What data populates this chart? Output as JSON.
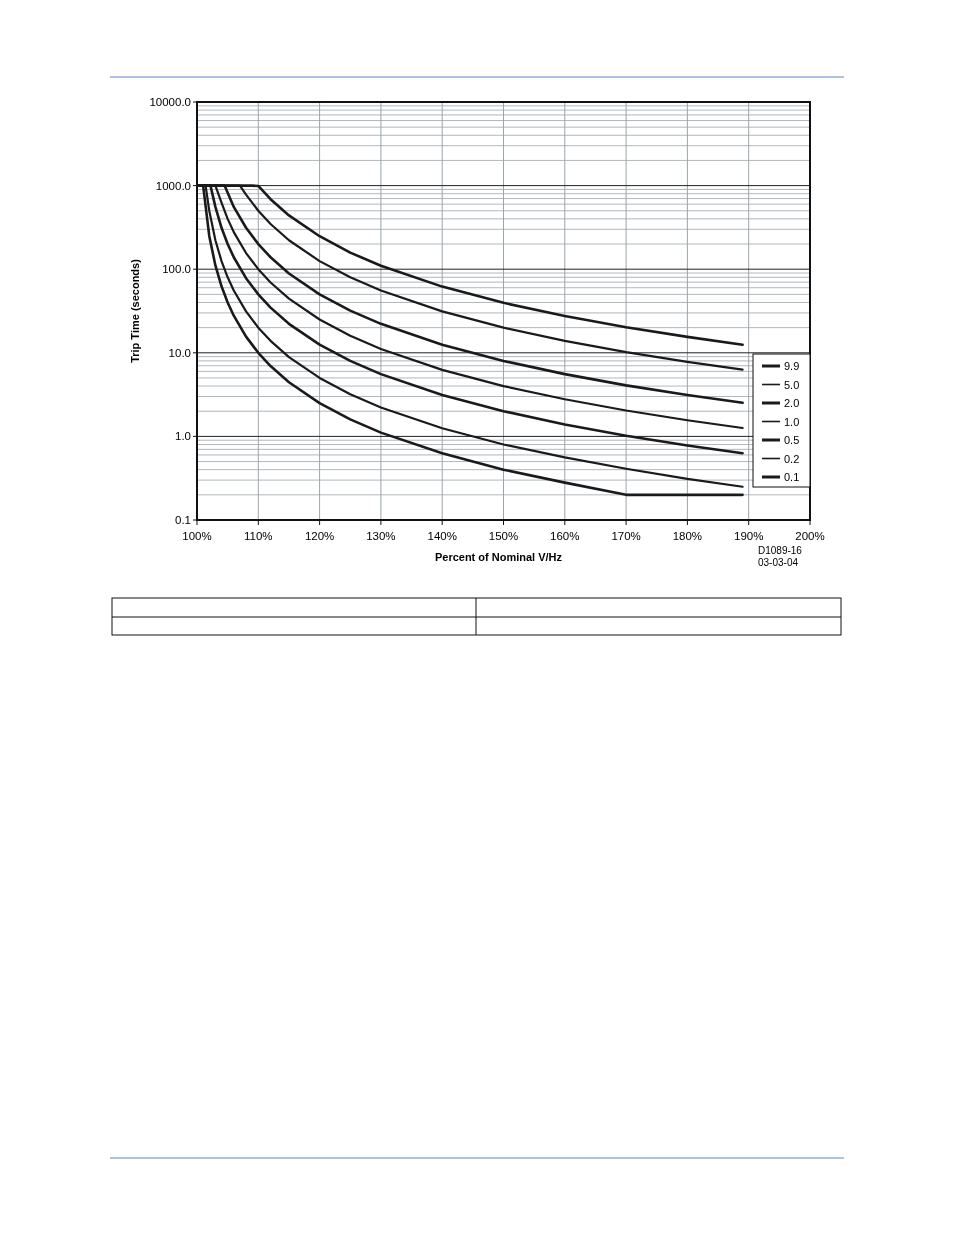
{
  "chart_data": {
    "type": "line",
    "xlabel": "Percent of Nominal V/Hz",
    "ylabel": "Trip Time (seconds)",
    "log": "y",
    "grid": true,
    "legend": "right",
    "marker": "none",
    "line_style": "solid",
    "xlim": [
      100,
      200
    ],
    "ylim": [
      0.1,
      10000
    ],
    "xticks": [
      {
        "value": 100,
        "label": "100%"
      },
      {
        "value": 110,
        "label": "110%"
      },
      {
        "value": 120,
        "label": "120%"
      },
      {
        "value": 130,
        "label": "130%"
      },
      {
        "value": 140,
        "label": "140%"
      },
      {
        "value": 150,
        "label": "150%"
      },
      {
        "value": 160,
        "label": "160%"
      },
      {
        "value": 170,
        "label": "170%"
      },
      {
        "value": 180,
        "label": "180%"
      },
      {
        "value": 190,
        "label": "190%"
      },
      {
        "value": 200,
        "label": "200%"
      }
    ],
    "yticks": [
      {
        "value": 0.1,
        "label": "0.1"
      },
      {
        "value": 1,
        "label": "1.0"
      },
      {
        "value": 10,
        "label": "10.0"
      },
      {
        "value": 100,
        "label": "100.0"
      },
      {
        "value": 1000,
        "label": "1000.0"
      },
      {
        "value": 10000,
        "label": "10000.0"
      }
    ],
    "annotations": [
      "D1089-16",
      "03-03-04"
    ],
    "series": [
      {
        "name": "9.9",
        "color": "#1a1a1a",
        "x": [
          100,
          109,
          110,
          112,
          115,
          120,
          125,
          130,
          140,
          150,
          160,
          170,
          180,
          189
        ],
        "values": [
          1000,
          1000,
          990,
          687,
          440,
          248,
          158,
          110,
          61.9,
          39.6,
          27.5,
          20.2,
          15.5,
          12.5
        ]
      },
      {
        "name": "5.0",
        "color": "#1a1a1a",
        "x": [
          100,
          107,
          108,
          110,
          112,
          115,
          120,
          125,
          130,
          140,
          150,
          160,
          170,
          180,
          189
        ],
        "values": [
          1000,
          1000,
          781,
          500,
          347,
          222,
          125,
          80,
          55.6,
          31.3,
          20,
          13.9,
          10.2,
          7.8,
          6.3
        ]
      },
      {
        "name": "2.0",
        "color": "#1a1a1a",
        "x": [
          100,
          104.5,
          106,
          108,
          110,
          112,
          115,
          120,
          125,
          130,
          140,
          150,
          160,
          170,
          180,
          189
        ],
        "values": [
          1000,
          1000,
          556,
          313,
          200,
          139,
          88.9,
          50,
          32,
          22.2,
          12.5,
          8,
          5.56,
          4.08,
          3.13,
          2.53
        ]
      },
      {
        "name": "1.0",
        "color": "#1a1a1a",
        "x": [
          100,
          103,
          104,
          105,
          106,
          108,
          110,
          112,
          115,
          120,
          125,
          130,
          140,
          150,
          160,
          170,
          180,
          189
        ],
        "values": [
          1000,
          1000,
          625,
          400,
          278,
          156,
          100,
          69.4,
          44.4,
          25,
          16,
          11.1,
          6.25,
          4,
          2.78,
          2.04,
          1.56,
          1.26
        ]
      },
      {
        "name": "0.5",
        "color": "#1a1a1a",
        "x": [
          100,
          102.2,
          103,
          104,
          105,
          106,
          108,
          110,
          112,
          115,
          120,
          125,
          130,
          140,
          150,
          160,
          170,
          180,
          189
        ],
        "values": [
          1000,
          1000,
          556,
          313,
          200,
          139,
          78.1,
          50,
          34.7,
          22.2,
          12.5,
          8,
          5.56,
          3.13,
          2,
          1.39,
          1.02,
          0.78,
          0.63
        ]
      },
      {
        "name": "0.2",
        "color": "#1a1a1a",
        "x": [
          100,
          101.4,
          102,
          103,
          104,
          105,
          106,
          108,
          110,
          112,
          115,
          120,
          125,
          130,
          140,
          150,
          160,
          170,
          180,
          189
        ],
        "values": [
          1000,
          1000,
          500,
          222,
          125,
          80,
          55.6,
          31.3,
          20,
          13.9,
          8.89,
          5,
          3.2,
          2.22,
          1.25,
          0.8,
          0.56,
          0.41,
          0.31,
          0.25
        ]
      },
      {
        "name": "0.1",
        "color": "#1a1a1a",
        "x": [
          100,
          101,
          102,
          103,
          104,
          105,
          106,
          108,
          110,
          112,
          115,
          120,
          125,
          130,
          140,
          150,
          160,
          170,
          180,
          189
        ],
        "values": [
          1000,
          1000,
          250,
          111,
          62.5,
          40,
          27.8,
          15.6,
          10,
          6.94,
          4.44,
          2.5,
          1.6,
          1.11,
          0.63,
          0.4,
          0.28,
          0.2,
          0.2,
          0.2
        ]
      }
    ]
  }
}
